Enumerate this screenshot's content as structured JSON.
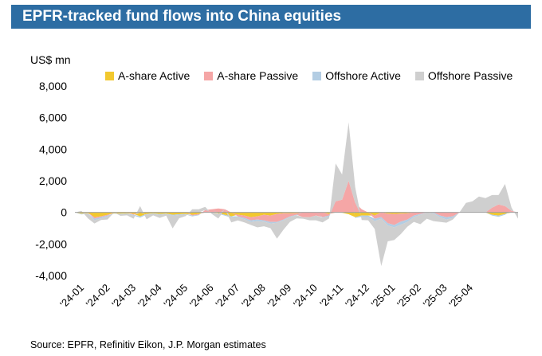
{
  "header": {
    "title": "EPFR-tracked fund flows into China equities"
  },
  "footer": {
    "source": "Source: EPFR, Refinitiv Eikon, J.P. Morgan estimates"
  },
  "chart_data": {
    "type": "area",
    "title": "EPFR-tracked fund flows into China equities",
    "ylabel": "US$ mn",
    "xlabel": "",
    "ylim": [
      -4000,
      8000
    ],
    "yticks": [
      8000,
      6000,
      4000,
      2000,
      0,
      -2000,
      -4000
    ],
    "ytick_labels": [
      "8,000",
      "6,000",
      "4,000",
      "2,000",
      "0",
      "-2,000",
      "-4,000"
    ],
    "xtick_labels": [
      "'24-01",
      "'24-02",
      "'24-03",
      "'24-04",
      "'24-05",
      "'24-06",
      "'24-07",
      "'24-08",
      "'24-09",
      "'24-10",
      "'24-11",
      "'24-12",
      "'25-01",
      "'25-02",
      "'25-03",
      "'25-04"
    ],
    "x_range": [
      0,
      68
    ],
    "grid": false,
    "legend_position": "top",
    "colors": {
      "A-share Active": "#f2c82e",
      "A-share Passive": "#f5a6a6",
      "Offshore Active": "#b3cde3",
      "Offshore Passive": "#cfcfcf"
    },
    "series": [
      {
        "name": "A-share Active",
        "values": [
          0,
          -80,
          -50,
          -300,
          -250,
          -150,
          -60,
          -80,
          -60,
          -100,
          -250,
          -100,
          -60,
          -100,
          -80,
          -150,
          -120,
          -100,
          -150,
          -100,
          0,
          0,
          -60,
          -150,
          -250,
          -150,
          -200,
          -300,
          -250,
          -150,
          -200,
          -100,
          -50,
          -60,
          -50,
          0,
          0,
          0,
          0,
          -100,
          0,
          -20,
          -120,
          -300,
          -200,
          -200,
          -200,
          0,
          -80,
          -100,
          -80,
          -60,
          0,
          0,
          0,
          0,
          0,
          0,
          0,
          0,
          0,
          0,
          0,
          0,
          -150,
          -200,
          -100,
          0,
          0
        ]
      },
      {
        "name": "A-share Passive",
        "values": [
          0,
          0,
          0,
          -100,
          -50,
          -50,
          0,
          0,
          0,
          -50,
          0,
          0,
          0,
          0,
          0,
          0,
          0,
          0,
          -50,
          -50,
          150,
          200,
          250,
          200,
          0,
          -100,
          -150,
          -200,
          -200,
          -350,
          -400,
          -500,
          -400,
          -200,
          -100,
          -300,
          -300,
          -200,
          -300,
          -100,
          700,
          800,
          2000,
          600,
          200,
          0,
          -200,
          -300,
          -600,
          -700,
          -500,
          -400,
          -200,
          -100,
          0,
          0,
          -200,
          -300,
          -250,
          0,
          0,
          0,
          0,
          0,
          300,
          500,
          400,
          100,
          0
        ]
      },
      {
        "name": "Offshore Active",
        "values": [
          0,
          -50,
          -30,
          -100,
          -80,
          -50,
          -20,
          -40,
          -30,
          -50,
          -80,
          -40,
          -30,
          -50,
          -30,
          -60,
          -50,
          -30,
          -60,
          -30,
          0,
          0,
          -30,
          -60,
          -80,
          -60,
          -80,
          -100,
          -100,
          -80,
          -100,
          -60,
          -50,
          -40,
          -30,
          0,
          0,
          0,
          -30,
          -80,
          0,
          0,
          0,
          -50,
          -80,
          -100,
          -150,
          -100,
          -150,
          -150,
          -200,
          -150,
          -100,
          -50,
          0,
          -50,
          -100,
          -150,
          -100,
          0,
          0,
          0,
          0,
          0,
          -50,
          -80,
          -50,
          0,
          0
        ]
      },
      {
        "name": "Offshore Passive",
        "values": [
          0,
          100,
          -300,
          -200,
          -100,
          -200,
          0,
          -100,
          -100,
          -200,
          400,
          -300,
          -100,
          -200,
          -100,
          -800,
          -200,
          -100,
          200,
          200,
          200,
          -100,
          -300,
          0,
          -300,
          -200,
          -200,
          -200,
          -400,
          -300,
          -300,
          -1000,
          -600,
          -300,
          -200,
          -100,
          -200,
          -300,
          -300,
          -100,
          2400,
          1600,
          3700,
          1000,
          -200,
          -200,
          -500,
          -3000,
          -1000,
          -800,
          -600,
          -300,
          -300,
          -600,
          -400,
          -500,
          -300,
          -200,
          -100,
          0,
          600,
          700,
          1000,
          900,
          800,
          600,
          1400,
          200,
          -400
        ]
      }
    ]
  }
}
